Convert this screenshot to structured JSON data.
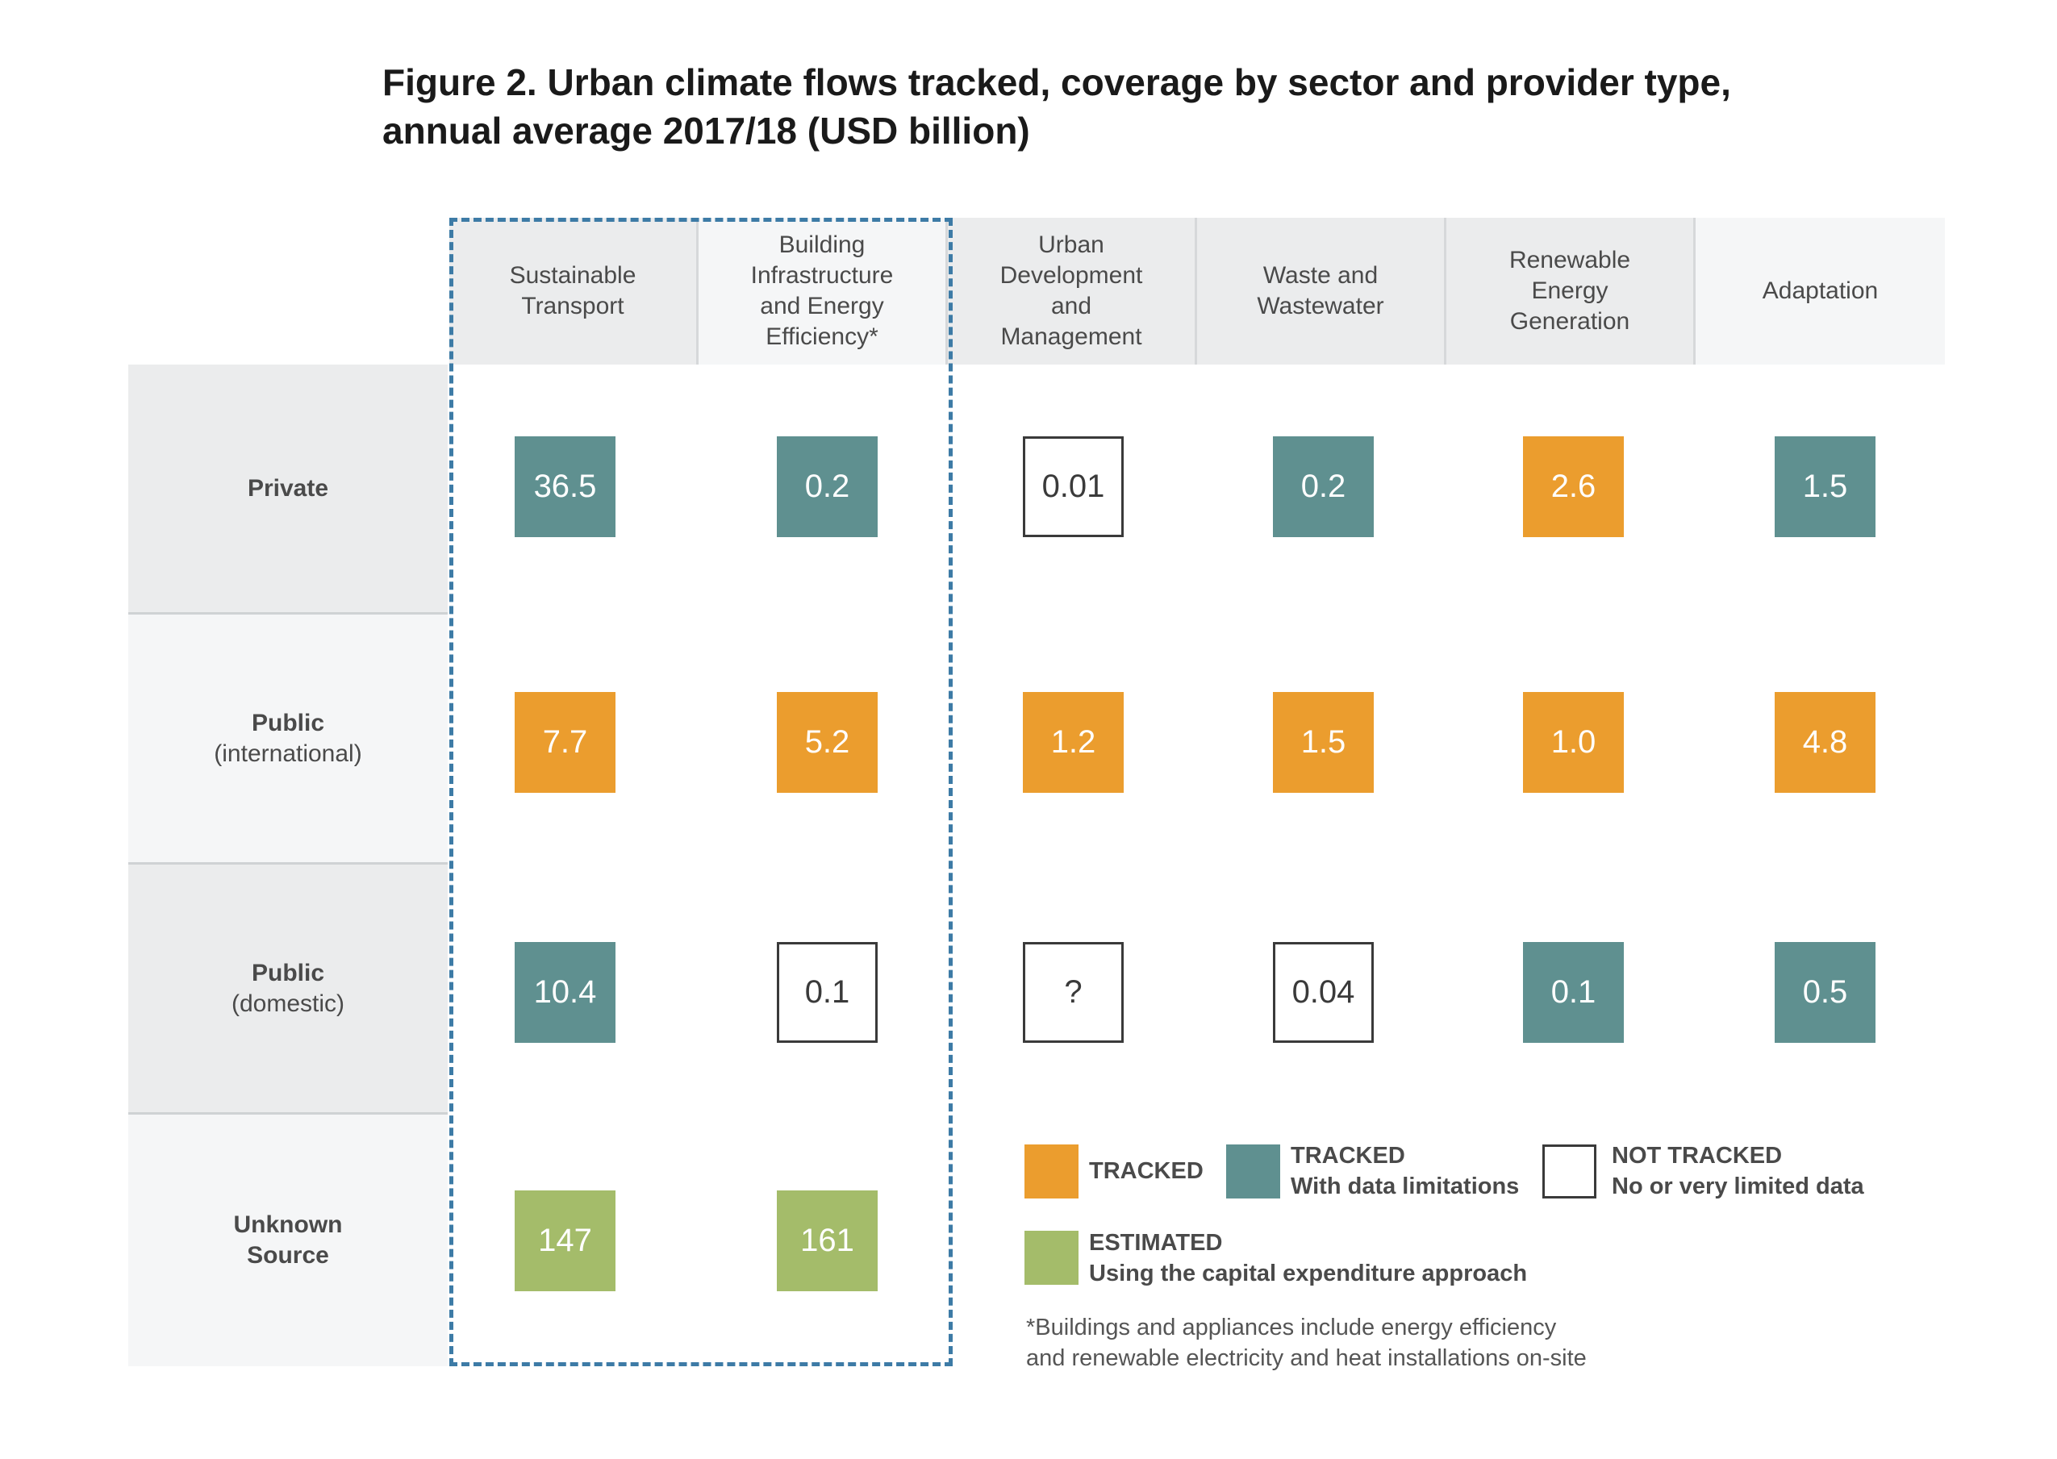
{
  "title_lines": [
    "Figure 2. Urban climate flows tracked, coverage by sector and provider type,",
    "annual average 2017/18 (USD billion)"
  ],
  "chart_data": {
    "type": "table",
    "columns": [
      {
        "lines": [
          "Sustainable",
          "Transport"
        ]
      },
      {
        "lines": [
          "Building",
          "Infrastructure",
          "and Energy",
          "Efficiency*"
        ]
      },
      {
        "lines": [
          "Urban",
          "Development",
          "and",
          "Management"
        ]
      },
      {
        "lines": [
          "Waste and",
          "Wastewater"
        ]
      },
      {
        "lines": [
          "Renewable",
          "Energy",
          "Generation"
        ]
      },
      {
        "lines": [
          "Adaptation"
        ]
      }
    ],
    "rows": [
      {
        "name": "Private",
        "sub": "",
        "cells": [
          {
            "value": "36.5",
            "status": "limited"
          },
          {
            "value": "0.2",
            "status": "limited"
          },
          {
            "value": "0.01",
            "status": "nottracked"
          },
          {
            "value": "0.2",
            "status": "limited"
          },
          {
            "value": "2.6",
            "status": "tracked"
          },
          {
            "value": "1.5",
            "status": "limited"
          }
        ]
      },
      {
        "name": "Public",
        "sub": "(international)",
        "cells": [
          {
            "value": "7.7",
            "status": "tracked"
          },
          {
            "value": "5.2",
            "status": "tracked"
          },
          {
            "value": "1.2",
            "status": "tracked"
          },
          {
            "value": "1.5",
            "status": "tracked"
          },
          {
            "value": "1.0",
            "status": "tracked"
          },
          {
            "value": "4.8",
            "status": "tracked"
          }
        ]
      },
      {
        "name": "Public",
        "sub": "(domestic)",
        "cells": [
          {
            "value": "10.4",
            "status": "limited"
          },
          {
            "value": "0.1",
            "status": "nottracked"
          },
          {
            "value": "?",
            "status": "nottracked"
          },
          {
            "value": "0.04",
            "status": "nottracked"
          },
          {
            "value": "0.1",
            "status": "limited"
          },
          {
            "value": "0.5",
            "status": "limited"
          }
        ]
      },
      {
        "name": "Unknown",
        "sub": "Source",
        "sub_bold": true,
        "cells": [
          {
            "value": "147",
            "status": "estimated"
          },
          {
            "value": "161",
            "status": "estimated"
          },
          null,
          null,
          null,
          null
        ]
      }
    ],
    "colors": {
      "tracked": "#eb9d2e",
      "limited": "#5f9090",
      "estimated": "#a4bc6a",
      "nottracked": "#ffffff",
      "highlight": "#3d7ba6"
    }
  },
  "legend": {
    "tracked": {
      "line1": "TRACKED",
      "line2": ""
    },
    "limited": {
      "line1": "TRACKED",
      "line2": "With data limitations"
    },
    "nottracked": {
      "line1": "NOT TRACKED",
      "line2": "No or very limited data"
    },
    "estimated": {
      "line1": "ESTIMATED",
      "line2": "Using the capital expenditure approach"
    }
  },
  "footnote_lines": [
    "*Buildings and appliances include energy efficiency",
    "and renewable electricity and heat installations on-site"
  ]
}
